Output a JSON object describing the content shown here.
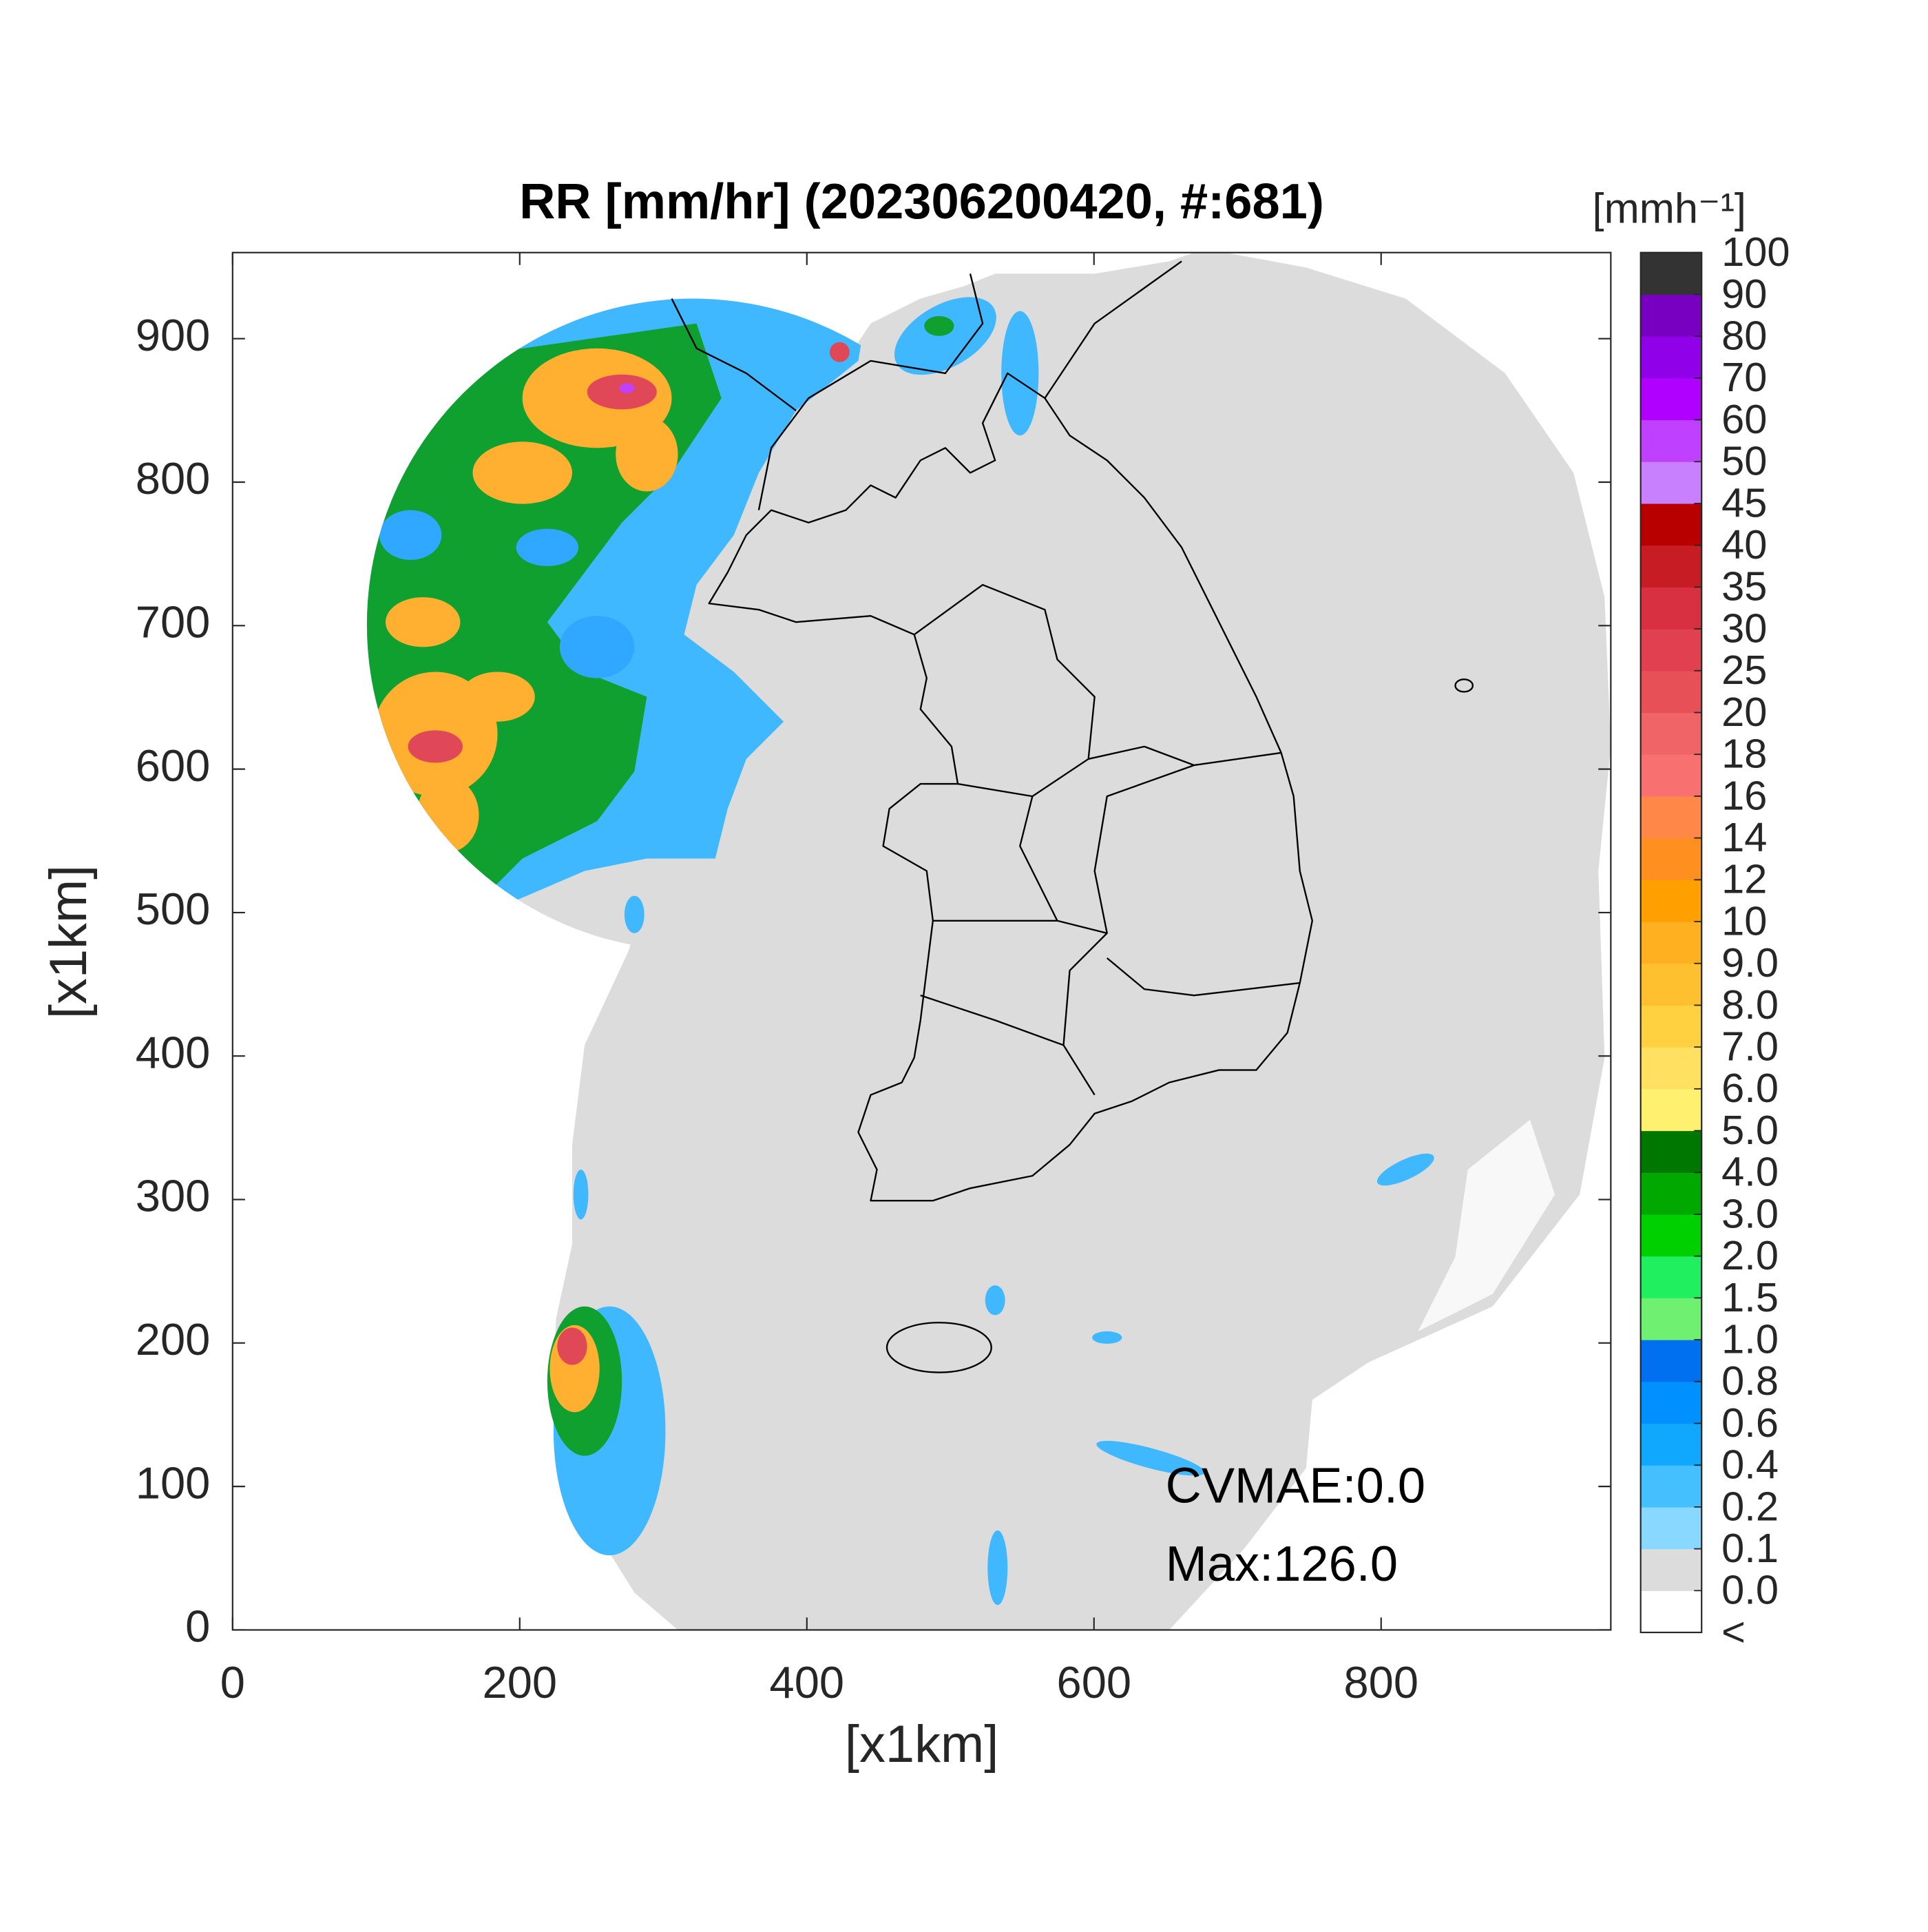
{
  "title": "RR [mm/hr] (202306200420, #:681)",
  "map": {
    "xlim": [
      0,
      960
    ],
    "ylim": [
      0,
      960
    ],
    "xticks": [
      0,
      200,
      400,
      600,
      800
    ],
    "yticks": [
      0,
      100,
      200,
      300,
      400,
      500,
      600,
      700,
      800,
      900
    ],
    "xlabel": "[x1km]",
    "ylabel": "[x1km]"
  },
  "colorbar": {
    "unit": "[mmh⁻¹]",
    "under_label": "<",
    "levels": [
      {
        "value": 0,
        "label": "0.0"
      },
      0.1,
      0.2,
      0.4,
      0.6,
      0.8,
      {
        "value": 1,
        "label": "1.0"
      },
      1.5,
      {
        "value": 2,
        "label": "2.0"
      },
      {
        "value": 3,
        "label": "3.0"
      },
      {
        "value": 4,
        "label": "4.0"
      },
      {
        "value": 5,
        "label": "5.0"
      },
      {
        "value": 6,
        "label": "6.0"
      },
      {
        "value": 7,
        "label": "7.0"
      },
      {
        "value": 8,
        "label": "8.0"
      },
      {
        "value": 9,
        "label": "9.0"
      },
      10,
      12,
      14,
      16,
      18,
      20,
      25,
      30,
      35,
      40,
      45,
      50,
      60,
      70,
      80,
      90,
      100
    ],
    "colors": [
      "#ffffff",
      "#dcdcdc",
      "#88d8ff",
      "#44c0ff",
      "#10a8ff",
      "#0090ff",
      "#0070f0",
      "#70f070",
      "#20f060",
      "#00d000",
      "#00a800",
      "#007800",
      "#fff070",
      "#ffe060",
      "#ffd040",
      "#ffc030",
      "#ffb020",
      "#ffa000",
      "#ff9020",
      "#ff8848",
      "#f87070",
      "#f06468",
      "#e85058",
      "#e04050",
      "#d83040",
      "#c81c24",
      "#b80000",
      "#c880ff",
      "#c040ff",
      "#b000ff",
      "#9000e8",
      "#7800c0",
      "#333333"
    ]
  },
  "annotations": [
    "CVMAE:0.0",
    "Max:126.0"
  ]
}
